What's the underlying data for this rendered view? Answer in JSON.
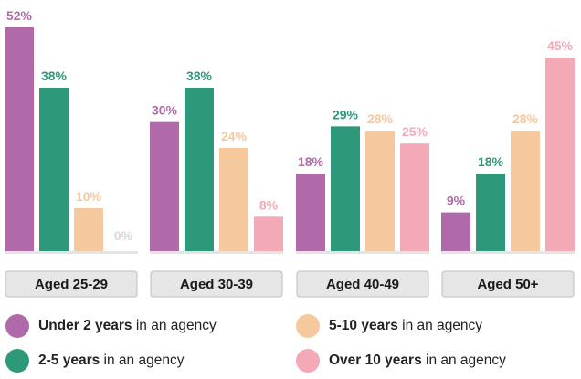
{
  "chart_data": {
    "type": "bar",
    "categories": [
      "Aged 25-29",
      "Aged 30-39",
      "Aged 40-49",
      "Aged 50+"
    ],
    "series": [
      {
        "name": "Under 2 years",
        "color": "#b06aa9",
        "values": [
          52,
          30,
          18,
          9
        ]
      },
      {
        "name": "2-5 years",
        "color": "#2e987a",
        "values": [
          38,
          38,
          29,
          18
        ]
      },
      {
        "name": "5-10 years",
        "color": "#f6c89e",
        "values": [
          10,
          24,
          28,
          28
        ]
      },
      {
        "name": "Over 10 years",
        "color": "#f3a9b6",
        "values": [
          0,
          8,
          25,
          45
        ]
      }
    ],
    "value_suffix": "%",
    "ylim": [
      0,
      55
    ],
    "grid": false,
    "legend_position": "bottom"
  },
  "legend": {
    "suffix": " in an agency",
    "items": [
      {
        "label": "Under 2 years",
        "color": "#b06aa9"
      },
      {
        "label": "2-5 years",
        "color": "#2e987a"
      },
      {
        "label": "5-10 years",
        "color": "#f6c89e"
      },
      {
        "label": "Over 10 years",
        "color": "#f3a9b6"
      }
    ]
  },
  "style": {
    "baseline_color": "#e4e4e4",
    "category_box_fill": "#e6e6e6",
    "category_box_stroke": "#bdbdbd",
    "category_text_color": "#1a1a1a",
    "zero_label_color": "#d8d8d8"
  }
}
